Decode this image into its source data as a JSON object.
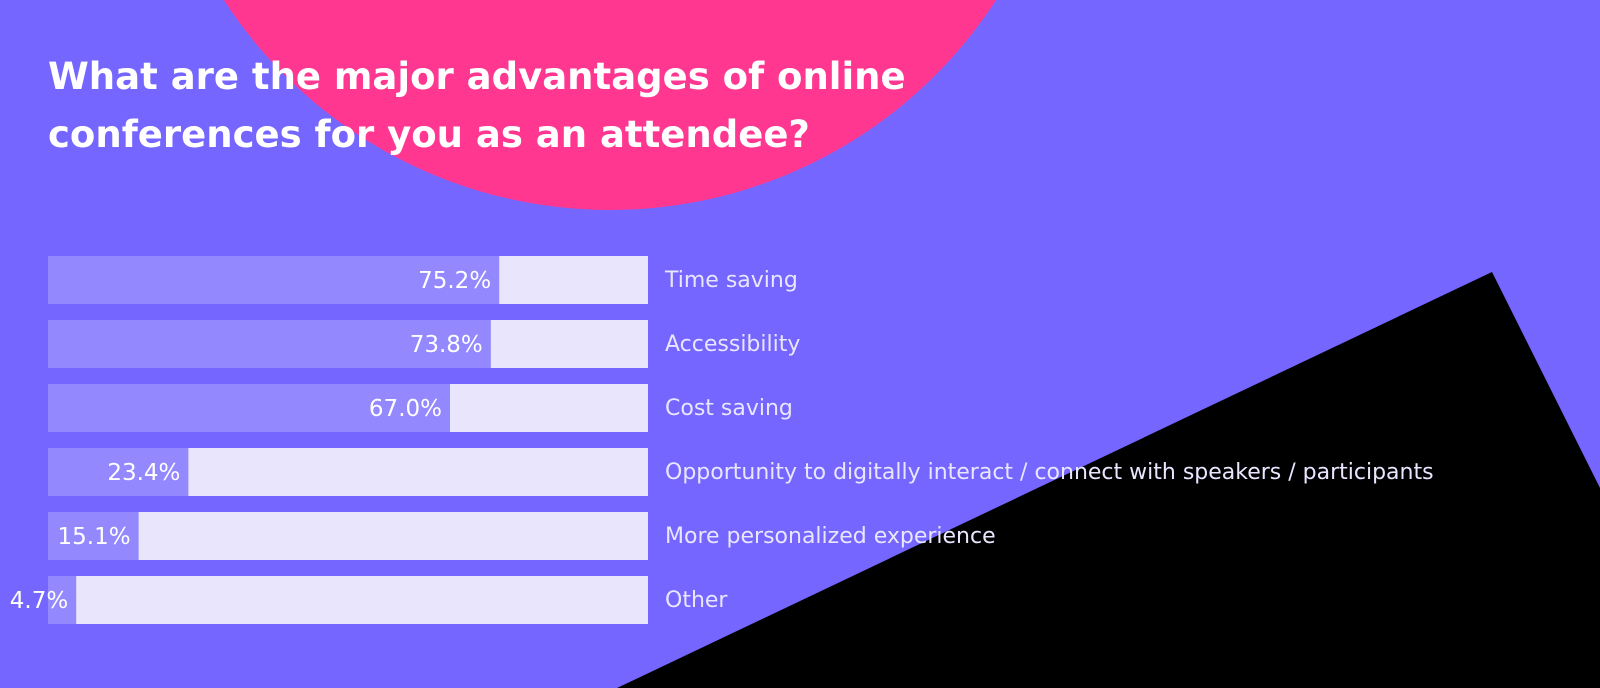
{
  "colors": {
    "background": "#7466fe",
    "pink_shape": "#ff3791",
    "black_shape": "#000000",
    "bar_fill": "#9488ff",
    "bar_track": "#e8e5fd",
    "value_text": "#ffffff",
    "category_text": "#e9e6ff"
  },
  "title": "What are the major advantages of online conferences for you as an attendee?",
  "chart_data": {
    "type": "bar",
    "orientation": "horizontal",
    "title": "What are the major advantages of online conferences for you as an attendee?",
    "categories": [
      "Time saving",
      "Accessibility",
      "Cost saving",
      "Opportunity to digitally interact / connect with speakers / participants",
      "More personalized experience",
      "Other"
    ],
    "values": [
      75.2,
      73.8,
      67.0,
      23.4,
      15.1,
      4.7
    ],
    "value_labels": [
      "75.2%",
      "73.8%",
      "67.0%",
      "23.4%",
      "15.1%",
      "4.7%"
    ],
    "unit": "%",
    "xlim": [
      0,
      100
    ],
    "grid": false,
    "legend": "none"
  }
}
